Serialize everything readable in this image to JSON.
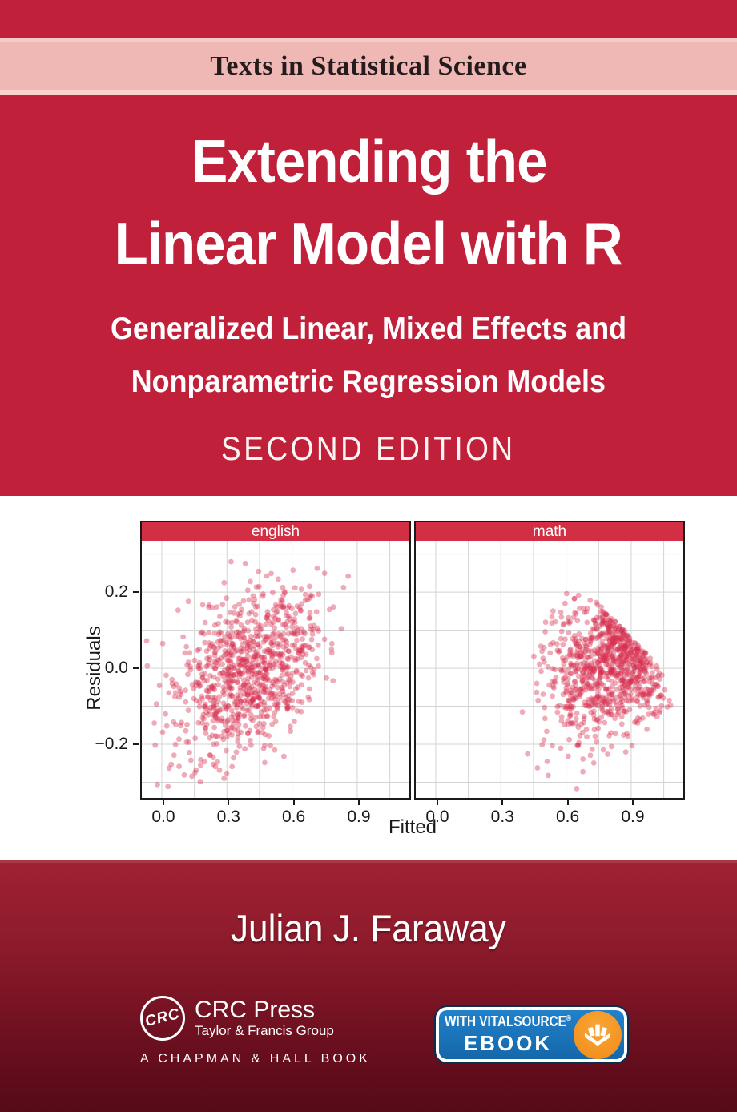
{
  "series_banner": {
    "text": "Texts in Statistical Science"
  },
  "title": {
    "line1": "Extending the",
    "line2": "Linear Model with R"
  },
  "subtitle": {
    "line1": "Generalized Linear, Mixed Effects and",
    "line2": "Nonparametric Regression Models"
  },
  "edition": "SECOND EDITION",
  "author": "Julian J. Faraway",
  "publisher": {
    "crc_monogram": "CRC",
    "crc_name": "CRC Press",
    "crc_group": "Taylor & Francis Group",
    "chapman_line": "A CHAPMAN & HALL BOOK"
  },
  "ebook_badge": {
    "line1": "WITH VITALSOURCE",
    "reg": "®",
    "line2": "EBOOK"
  },
  "colors": {
    "cover_red": "#c1203a",
    "series_band_pink": "#f0b8b5",
    "series_text": "#241b1d",
    "panel_strip_red": "#d22f44",
    "scatter_point": "#d62e4e",
    "bottom_gradient_top": "#a02232",
    "bottom_gradient_bottom": "#560a18",
    "badge_blue": "#1a72ba",
    "badge_orange": "#f7941d"
  },
  "chart_data": {
    "type": "scatter",
    "xlabel": "Fitted",
    "ylabel": "Residuals",
    "x_domain": [
      -0.092,
      1.14
    ],
    "y_domain": [
      -0.341,
      0.335
    ],
    "x_ticks": [
      0,
      0.3,
      0.6,
      0.9
    ],
    "x_tick_labels": [
      "0.0",
      "0.3",
      "0.6",
      "0.9"
    ],
    "y_ticks": [
      0.2,
      0,
      -0.2
    ],
    "y_tick_labels": [
      "0.2",
      "0.0",
      "−0.2"
    ],
    "x_grid_step": 0.15,
    "y_grid_step": 0.1,
    "grid": true,
    "grid_color": "#d3d3d3",
    "point_color": "#d62e4e",
    "point_alpha": 0.4,
    "point_radius": 3.4,
    "panels": [
      {
        "label": "english",
        "n": 900,
        "seed": 7,
        "cx": 0.4,
        "cy": -0.01,
        "sx": 0.165,
        "sy": 0.115,
        "rho": 0.4,
        "clip": {
          "xmin": -0.08,
          "xmax": 0.87,
          "ymin": -0.33,
          "ymax": 0.31
        }
      },
      {
        "label": "math",
        "n": 900,
        "seed": 13,
        "cx": 0.8,
        "cy": 0.02,
        "sx": 0.14,
        "sy": 0.105,
        "rho": 0.3,
        "clip": {
          "xmin": 0.34,
          "xmax": 1.13,
          "ymin": -0.33,
          "ymax": 0.27
        },
        "upper_cut": {
          "intercept": 0.62,
          "slope": -0.6,
          "reflect": true
        },
        "lower_cut": {
          "intercept": -0.75,
          "slope": 0.6
        }
      }
    ]
  }
}
